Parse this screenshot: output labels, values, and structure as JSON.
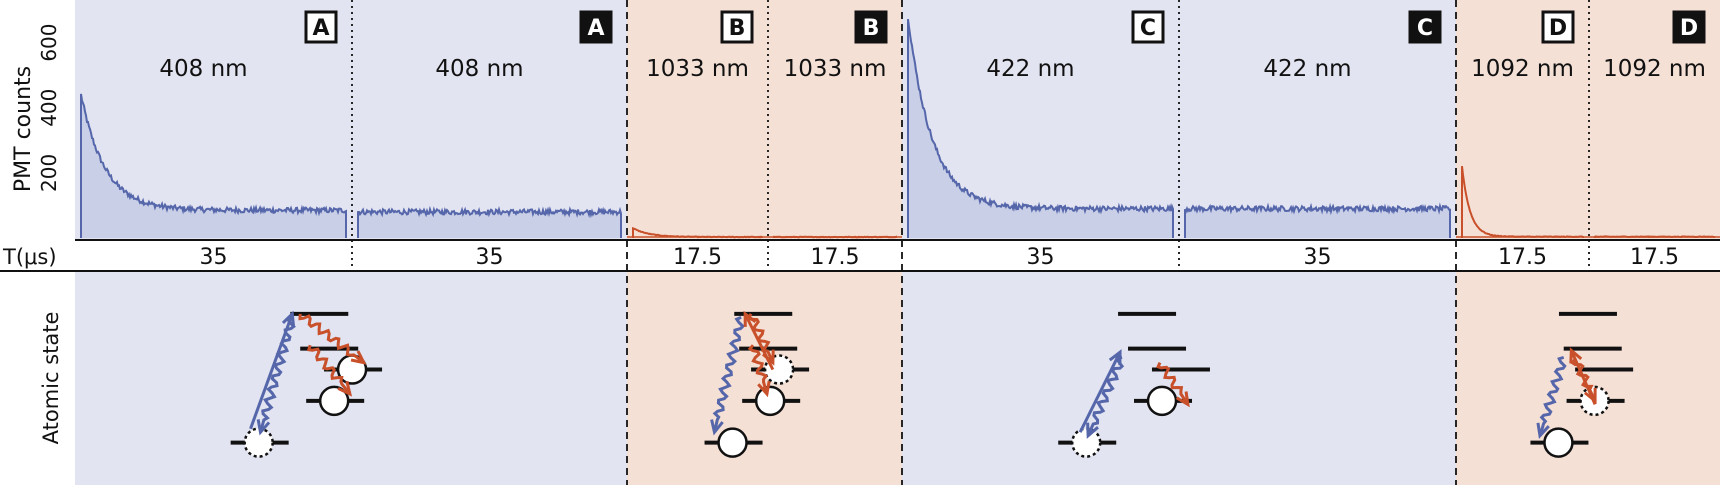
{
  "colors": {
    "blue_bg": "#e2e4f1",
    "orange_bg": "#f5e0d6",
    "blue_trace": "#5566aa",
    "blue_fill": "#c6cce6",
    "orange_trace": "#c8502a",
    "black": "#111111"
  },
  "y_axis": {
    "label": "PMT counts",
    "ticks": [
      "200",
      "400",
      "600"
    ],
    "tick_values": [
      200,
      400,
      600
    ],
    "max": 700
  },
  "time_axis": {
    "label": "T(μs)"
  },
  "lower_axis": {
    "label": "Atomic state"
  },
  "panels": [
    {
      "letter": "A",
      "style": "outline",
      "wavelength": "408 nm",
      "duration": "35",
      "bg": "blue",
      "trace": "blue",
      "peak": 440,
      "baseline": 85,
      "decay": 6,
      "noise": 8,
      "gap": true
    },
    {
      "letter": "A",
      "style": "filled",
      "wavelength": "408 nm",
      "duration": "35",
      "bg": "blue",
      "trace": "blue",
      "peak": 80,
      "baseline": 80,
      "decay": 1,
      "noise": 8,
      "gap": false
    },
    {
      "letter": "B",
      "style": "outline",
      "wavelength": "1033 nm",
      "duration": "17.5",
      "bg": "orange",
      "trace": "orange",
      "peak": 30,
      "baseline": 3,
      "decay": 4,
      "noise": 1,
      "gap": false
    },
    {
      "letter": "B",
      "style": "filled",
      "wavelength": "1033 nm",
      "duration": "17.5",
      "bg": "orange",
      "trace": "orange",
      "peak": 3,
      "baseline": 3,
      "decay": 1,
      "noise": 1,
      "gap": false
    },
    {
      "letter": "C",
      "style": "outline",
      "wavelength": "422 nm",
      "duration": "35",
      "bg": "blue",
      "trace": "blue",
      "peak": 680,
      "baseline": 90,
      "decay": 6,
      "noise": 8,
      "gap": true
    },
    {
      "letter": "C",
      "style": "filled",
      "wavelength": "422 nm",
      "duration": "35",
      "bg": "blue",
      "trace": "blue",
      "peak": 90,
      "baseline": 90,
      "decay": 1,
      "noise": 8,
      "gap": false
    },
    {
      "letter": "D",
      "style": "outline",
      "wavelength": "1092 nm",
      "duration": "17.5",
      "bg": "orange",
      "trace": "orange",
      "peak": 220,
      "baseline": 4,
      "decay": 2,
      "noise": 1,
      "gap": false
    },
    {
      "letter": "D",
      "style": "filled",
      "wavelength": "1092 nm",
      "duration": "17.5",
      "bg": "orange",
      "trace": "orange",
      "peak": 4,
      "baseline": 4,
      "decay": 1,
      "noise": 1,
      "gap": false
    }
  ],
  "diagrams": [
    {
      "levels": [
        [
          0.25,
          0.12,
          "line"
        ],
        [
          0.3,
          0.32,
          "line"
        ],
        [
          0.42,
          0.44,
          "circle-solid"
        ],
        [
          0.33,
          0.62,
          "circle-solid"
        ],
        [
          -0.05,
          0.86,
          "circle-dashed"
        ]
      ],
      "arrows": [
        [
          0.05,
          0.78,
          0.26,
          0.12,
          "blue",
          "straight"
        ],
        [
          0.26,
          0.14,
          0.1,
          0.8,
          "blue",
          "wavy"
        ],
        [
          0.3,
          0.12,
          0.62,
          0.4,
          "orange",
          "wavy"
        ],
        [
          0.35,
          0.3,
          0.55,
          0.58,
          "orange",
          "wavy"
        ]
      ]
    },
    {
      "levels": [
        [
          0.25,
          0.12,
          "line"
        ],
        [
          0.3,
          0.32,
          "line"
        ],
        [
          0.42,
          0.44,
          "circle-dashed"
        ],
        [
          0.33,
          0.62,
          "circle-solid"
        ],
        [
          -0.05,
          0.86,
          "circle-solid"
        ]
      ],
      "arrows": [
        [
          0.32,
          0.14,
          0.05,
          0.8,
          "blue",
          "wavy"
        ],
        [
          0.42,
          0.12,
          0.64,
          0.4,
          "orange",
          "wavy"
        ],
        [
          0.44,
          0.3,
          0.58,
          0.58,
          "orange",
          "wavy"
        ],
        [
          0.64,
          0.44,
          0.36,
          0.12,
          "orange",
          "straight"
        ]
      ]
    },
    {
      "levels": [
        [
          0.25,
          0.12,
          "line"
        ],
        [
          0.3,
          0.32,
          "line"
        ],
        [
          0.42,
          0.44,
          "line"
        ],
        [
          0.33,
          0.62,
          "circle-solid"
        ],
        [
          -0.05,
          0.86,
          "circle-dashed"
        ]
      ],
      "arrows": [
        [
          0.06,
          0.8,
          0.26,
          0.34,
          "blue",
          "straight"
        ],
        [
          0.27,
          0.37,
          0.1,
          0.82,
          "blue",
          "wavy"
        ],
        [
          0.46,
          0.4,
          0.6,
          0.64,
          "orange",
          "wavy"
        ]
      ]
    },
    {
      "levels": [
        [
          0.25,
          0.12,
          "line"
        ],
        [
          0.3,
          0.32,
          "line"
        ],
        [
          0.42,
          0.44,
          "line"
        ],
        [
          0.33,
          0.62,
          "circle-dashed"
        ],
        [
          -0.05,
          0.86,
          "circle-solid"
        ]
      ],
      "arrows": [
        [
          0.3,
          0.37,
          0.05,
          0.82,
          "blue",
          "wavy"
        ],
        [
          0.42,
          0.38,
          0.63,
          0.62,
          "orange",
          "wavy"
        ],
        [
          0.63,
          0.64,
          0.38,
          0.33,
          "orange",
          "straight"
        ]
      ]
    }
  ]
}
